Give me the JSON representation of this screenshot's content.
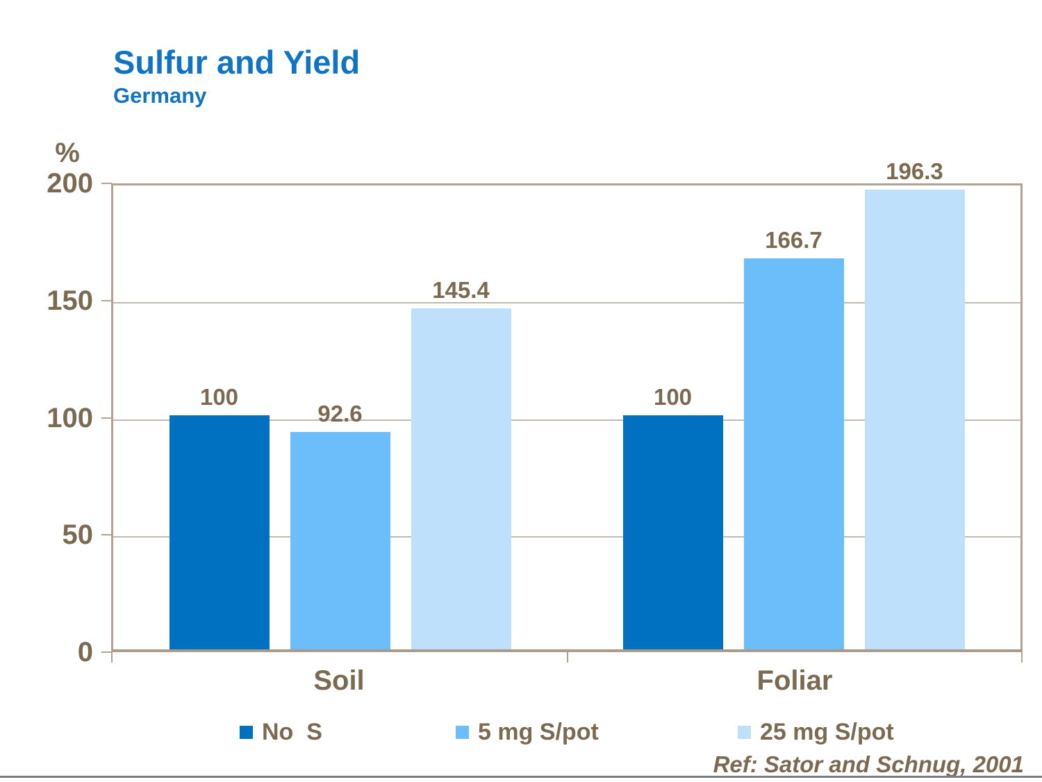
{
  "header": {
    "title": "Sulfur and Yield",
    "subtitle": "Germany"
  },
  "y_axis": {
    "unit_label": "%",
    "ticks": [
      {
        "label": "200",
        "value": 200
      },
      {
        "label": "150",
        "value": 150
      },
      {
        "label": "100",
        "value": 100
      },
      {
        "label": "50",
        "value": 50
      },
      {
        "label": "0",
        "value": 0
      }
    ]
  },
  "chart_data": {
    "type": "bar",
    "title": "Sulfur and Yield",
    "subtitle": "Germany",
    "xlabel": "",
    "ylabel": "%",
    "ylim": [
      0,
      200
    ],
    "grid": true,
    "legend_position": "bottom",
    "categories": [
      "Soil",
      "Foliar"
    ],
    "series": [
      {
        "name": "No  S",
        "color": "#0070c0",
        "values": [
          100,
          100
        ],
        "value_labels": [
          "100",
          "100"
        ]
      },
      {
        "name": "5 mg S/pot",
        "color": "#6bbefa",
        "values": [
          92.6,
          166.7
        ],
        "value_labels": [
          "92.6",
          "166.7"
        ]
      },
      {
        "name": "25 mg S/pot",
        "color": "#bee0fb",
        "values": [
          145.4,
          196.3
        ],
        "value_labels": [
          "145.4",
          "196.3"
        ]
      }
    ]
  },
  "legend": {
    "items": [
      {
        "label": "No  S",
        "color": "#0070c0"
      },
      {
        "label": "5 mg S/pot",
        "color": "#6bbefa"
      },
      {
        "label": "25 mg S/pot",
        "color": "#bee0fb"
      }
    ]
  },
  "footer": {
    "reference": "Ref: Sator and Schnug, 2001"
  },
  "colors": {
    "title_blue": "#1173c4",
    "label_brown": "#7b6a52",
    "plot_border_beige": "#b1a293",
    "gridline": "#c2bab0",
    "bottom_rule_gray": "#7a7d81",
    "series_dark_blue": "#0070c0",
    "series_medium_blue": "#6bbefa",
    "series_light_blue": "#bee0fb"
  }
}
